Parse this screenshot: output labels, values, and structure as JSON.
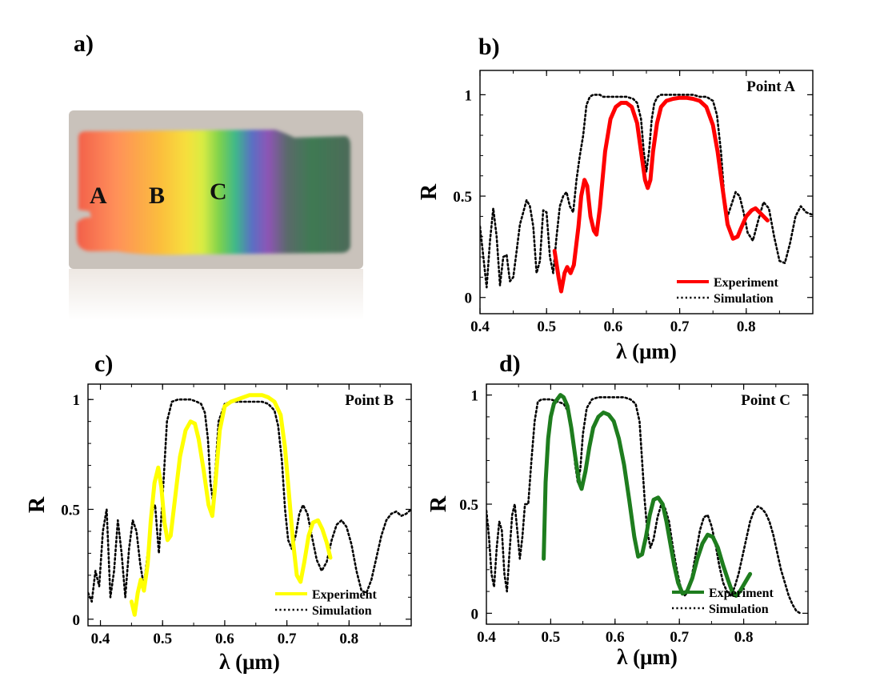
{
  "panel_labels": {
    "a": "a)",
    "b": "b)",
    "c": "c)",
    "d": "d)"
  },
  "photo": {
    "point_labels": [
      {
        "text": "A",
        "color": "#111111"
      },
      {
        "text": "B",
        "color": "#111111"
      },
      {
        "text": "C",
        "color": "#111111"
      }
    ],
    "gradient_colors": [
      "#f25f4a",
      "#ff8f5a",
      "#fbbc3e",
      "#f7df3c",
      "#d9ec43",
      "#7fd24c",
      "#3fb88a",
      "#5a6fc4",
      "#8e55b5",
      "#5a6a6a",
      "#3e7a52",
      "#4d6a5a"
    ]
  },
  "chart_data": [
    {
      "type": "line",
      "panel": "b",
      "annotation": "Point A",
      "xlabel": "λ (μm)",
      "ylabel": "R",
      "xlim": [
        0.4,
        0.9
      ],
      "ylim": [
        -0.08,
        1.12
      ],
      "xticks": [
        0.4,
        0.5,
        0.6,
        0.7,
        0.8
      ],
      "xtick_labels": [
        "0.4",
        "0.5",
        "0.6",
        "0.7",
        "0.8"
      ],
      "yticks": [
        0,
        0.5,
        1
      ],
      "ytick_labels": [
        "0",
        "0.5",
        "1"
      ],
      "legend_position": "bottom-right",
      "series": [
        {
          "name": "Experiment",
          "color": "#ff0000",
          "style": "solid",
          "x": [
            0.512,
            0.518,
            0.522,
            0.527,
            0.531,
            0.536,
            0.541,
            0.548,
            0.552,
            0.557,
            0.561,
            0.566,
            0.571,
            0.575,
            0.58,
            0.588,
            0.596,
            0.604,
            0.612,
            0.62,
            0.628,
            0.636,
            0.642,
            0.648,
            0.652,
            0.656,
            0.66,
            0.666,
            0.672,
            0.68,
            0.69,
            0.7,
            0.71,
            0.72,
            0.73,
            0.74,
            0.75,
            0.757,
            0.764,
            0.772,
            0.78,
            0.787,
            0.792,
            0.8,
            0.808,
            0.814,
            0.82,
            0.826,
            0.832
          ],
          "y": [
            0.23,
            0.1,
            0.03,
            0.12,
            0.15,
            0.12,
            0.16,
            0.35,
            0.5,
            0.58,
            0.55,
            0.4,
            0.33,
            0.31,
            0.44,
            0.72,
            0.88,
            0.94,
            0.96,
            0.96,
            0.94,
            0.86,
            0.72,
            0.58,
            0.54,
            0.58,
            0.72,
            0.86,
            0.94,
            0.97,
            0.98,
            0.985,
            0.985,
            0.98,
            0.97,
            0.94,
            0.85,
            0.72,
            0.55,
            0.36,
            0.29,
            0.3,
            0.34,
            0.4,
            0.43,
            0.44,
            0.42,
            0.4,
            0.38
          ]
        },
        {
          "name": "Simulation",
          "color": "#000000",
          "style": "dotted",
          "x": [
            0.4,
            0.405,
            0.41,
            0.415,
            0.42,
            0.425,
            0.43,
            0.435,
            0.44,
            0.445,
            0.45,
            0.455,
            0.46,
            0.465,
            0.47,
            0.475,
            0.48,
            0.485,
            0.49,
            0.495,
            0.5,
            0.505,
            0.51,
            0.515,
            0.52,
            0.525,
            0.53,
            0.535,
            0.54,
            0.545,
            0.55,
            0.555,
            0.56,
            0.565,
            0.57,
            0.575,
            0.58,
            0.585,
            0.59,
            0.6,
            0.61,
            0.62,
            0.63,
            0.636,
            0.642,
            0.646,
            0.65,
            0.654,
            0.658,
            0.662,
            0.667,
            0.672,
            0.68,
            0.69,
            0.7,
            0.71,
            0.72,
            0.73,
            0.74,
            0.75,
            0.756,
            0.762,
            0.767,
            0.772,
            0.778,
            0.784,
            0.79,
            0.796,
            0.802,
            0.81,
            0.818,
            0.826,
            0.834,
            0.842,
            0.85,
            0.858,
            0.866,
            0.874,
            0.882,
            0.89,
            0.898
          ],
          "y": [
            0.35,
            0.2,
            0.05,
            0.28,
            0.44,
            0.3,
            0.06,
            0.2,
            0.21,
            0.08,
            0.1,
            0.23,
            0.36,
            0.42,
            0.48,
            0.45,
            0.35,
            0.12,
            0.18,
            0.43,
            0.42,
            0.2,
            0.12,
            0.3,
            0.45,
            0.5,
            0.52,
            0.45,
            0.42,
            0.58,
            0.7,
            0.8,
            0.95,
            0.99,
            1.0,
            1.0,
            1.0,
            0.99,
            0.99,
            0.99,
            0.99,
            0.99,
            0.98,
            0.96,
            0.88,
            0.72,
            0.62,
            0.72,
            0.88,
            0.96,
            0.99,
            1.0,
            1.0,
            1.0,
            1.0,
            1.0,
            1.0,
            0.99,
            0.99,
            0.97,
            0.9,
            0.72,
            0.5,
            0.4,
            0.46,
            0.52,
            0.5,
            0.42,
            0.32,
            0.28,
            0.38,
            0.47,
            0.44,
            0.3,
            0.18,
            0.17,
            0.27,
            0.4,
            0.45,
            0.42,
            0.41
          ]
        }
      ]
    },
    {
      "type": "line",
      "panel": "c",
      "annotation": "Point B",
      "xlabel": "λ (μm)",
      "ylabel": "R",
      "xlim": [
        0.38,
        0.9
      ],
      "ylim": [
        -0.03,
        1.07
      ],
      "xticks": [
        0.4,
        0.5,
        0.6,
        0.7,
        0.8
      ],
      "xtick_labels": [
        "0.4",
        "0.5",
        "0.6",
        "0.7",
        "0.8"
      ],
      "yticks": [
        0,
        0.5,
        1
      ],
      "ytick_labels": [
        "0",
        "0.5",
        "1"
      ],
      "legend_position": "bottom-right",
      "series": [
        {
          "name": "Experiment",
          "color": "#ffff00",
          "style": "solid",
          "x": [
            0.45,
            0.455,
            0.46,
            0.465,
            0.47,
            0.476,
            0.481,
            0.487,
            0.493,
            0.498,
            0.503,
            0.508,
            0.513,
            0.52,
            0.528,
            0.537,
            0.545,
            0.552,
            0.558,
            0.566,
            0.574,
            0.58,
            0.585,
            0.592,
            0.6,
            0.61,
            0.62,
            0.63,
            0.64,
            0.65,
            0.66,
            0.67,
            0.68,
            0.69,
            0.697,
            0.704,
            0.71,
            0.716,
            0.722,
            0.728,
            0.735,
            0.742,
            0.75,
            0.757,
            0.764,
            0.77
          ],
          "y": [
            0.08,
            0.02,
            0.12,
            0.18,
            0.13,
            0.25,
            0.45,
            0.62,
            0.69,
            0.6,
            0.44,
            0.36,
            0.38,
            0.55,
            0.74,
            0.86,
            0.9,
            0.89,
            0.82,
            0.68,
            0.52,
            0.47,
            0.62,
            0.86,
            0.97,
            0.99,
            1.0,
            1.01,
            1.02,
            1.02,
            1.02,
            1.01,
            0.99,
            0.93,
            0.78,
            0.55,
            0.35,
            0.2,
            0.17,
            0.26,
            0.38,
            0.44,
            0.45,
            0.41,
            0.35,
            0.28
          ]
        },
        {
          "name": "Simulation",
          "color": "#000000",
          "style": "dotted",
          "x": [
            0.38,
            0.386,
            0.392,
            0.398,
            0.404,
            0.41,
            0.416,
            0.422,
            0.428,
            0.434,
            0.44,
            0.446,
            0.452,
            0.458,
            0.464,
            0.47,
            0.476,
            0.482,
            0.488,
            0.494,
            0.5,
            0.507,
            0.515,
            0.525,
            0.535,
            0.545,
            0.555,
            0.562,
            0.568,
            0.573,
            0.577,
            0.581,
            0.585,
            0.59,
            0.6,
            0.61,
            0.62,
            0.63,
            0.64,
            0.65,
            0.66,
            0.67,
            0.68,
            0.686,
            0.692,
            0.697,
            0.702,
            0.708,
            0.714,
            0.72,
            0.726,
            0.733,
            0.74,
            0.748,
            0.756,
            0.764,
            0.772,
            0.78,
            0.788,
            0.796,
            0.804,
            0.812,
            0.82,
            0.828,
            0.836,
            0.844,
            0.852,
            0.86,
            0.868,
            0.876,
            0.884,
            0.892,
            0.9
          ],
          "y": [
            0.12,
            0.08,
            0.22,
            0.15,
            0.4,
            0.5,
            0.1,
            0.22,
            0.45,
            0.3,
            0.1,
            0.32,
            0.45,
            0.4,
            0.25,
            0.15,
            0.3,
            0.48,
            0.52,
            0.3,
            0.55,
            0.9,
            0.99,
            1.0,
            1.0,
            1.0,
            0.99,
            0.98,
            0.94,
            0.82,
            0.62,
            0.54,
            0.68,
            0.9,
            0.98,
            0.99,
            0.99,
            0.99,
            0.99,
            0.99,
            0.99,
            0.98,
            0.95,
            0.88,
            0.72,
            0.5,
            0.36,
            0.32,
            0.38,
            0.48,
            0.52,
            0.48,
            0.38,
            0.27,
            0.22,
            0.26,
            0.36,
            0.43,
            0.45,
            0.42,
            0.34,
            0.22,
            0.13,
            0.12,
            0.18,
            0.28,
            0.38,
            0.45,
            0.48,
            0.49,
            0.47,
            0.48,
            0.5
          ]
        }
      ]
    },
    {
      "type": "line",
      "panel": "d",
      "annotation": "Point C",
      "xlabel": "λ (μm)",
      "ylabel": "R",
      "xlim": [
        0.4,
        0.9
      ],
      "ylim": [
        -0.05,
        1.05
      ],
      "xticks": [
        0.4,
        0.5,
        0.6,
        0.7,
        0.8
      ],
      "xtick_labels": [
        "0.4",
        "0.5",
        "0.6",
        "0.7",
        "0.8"
      ],
      "yticks": [
        0,
        0.5,
        1
      ],
      "ytick_labels": [
        "0",
        "0.5",
        "1"
      ],
      "legend_position": "bottom-right",
      "series": [
        {
          "name": "Experiment",
          "color": "#1e7d1e",
          "style": "solid",
          "x": [
            0.489,
            0.492,
            0.496,
            0.5,
            0.505,
            0.51,
            0.515,
            0.52,
            0.526,
            0.532,
            0.538,
            0.544,
            0.548,
            0.554,
            0.56,
            0.566,
            0.574,
            0.582,
            0.59,
            0.598,
            0.606,
            0.614,
            0.622,
            0.63,
            0.636,
            0.642,
            0.648,
            0.654,
            0.66,
            0.667,
            0.674,
            0.68,
            0.686,
            0.692,
            0.698,
            0.705,
            0.712,
            0.72,
            0.728,
            0.736,
            0.744,
            0.752,
            0.76,
            0.768,
            0.776,
            0.782,
            0.788,
            0.794,
            0.8,
            0.806,
            0.81
          ],
          "y": [
            0.25,
            0.6,
            0.8,
            0.9,
            0.96,
            0.98,
            1.0,
            0.99,
            0.95,
            0.85,
            0.72,
            0.6,
            0.57,
            0.65,
            0.76,
            0.85,
            0.9,
            0.92,
            0.91,
            0.88,
            0.8,
            0.68,
            0.52,
            0.35,
            0.26,
            0.27,
            0.35,
            0.45,
            0.52,
            0.53,
            0.5,
            0.42,
            0.32,
            0.22,
            0.14,
            0.09,
            0.1,
            0.16,
            0.25,
            0.32,
            0.36,
            0.35,
            0.3,
            0.22,
            0.15,
            0.1,
            0.08,
            0.1,
            0.13,
            0.16,
            0.18
          ]
        },
        {
          "name": "Simulation",
          "color": "#000000",
          "style": "dotted",
          "x": [
            0.4,
            0.404,
            0.408,
            0.412,
            0.416,
            0.42,
            0.424,
            0.428,
            0.432,
            0.436,
            0.44,
            0.444,
            0.448,
            0.452,
            0.456,
            0.46,
            0.465,
            0.47,
            0.475,
            0.48,
            0.486,
            0.492,
            0.5,
            0.51,
            0.52,
            0.528,
            0.534,
            0.538,
            0.542,
            0.546,
            0.55,
            0.556,
            0.564,
            0.574,
            0.584,
            0.594,
            0.604,
            0.614,
            0.624,
            0.632,
            0.638,
            0.642,
            0.646,
            0.65,
            0.655,
            0.66,
            0.666,
            0.672,
            0.678,
            0.684,
            0.69,
            0.696,
            0.702,
            0.708,
            0.714,
            0.72,
            0.726,
            0.732,
            0.738,
            0.744,
            0.75,
            0.756,
            0.762,
            0.768,
            0.774,
            0.78,
            0.786,
            0.792,
            0.798,
            0.804,
            0.81,
            0.816,
            0.822,
            0.828,
            0.834,
            0.84,
            0.846,
            0.852,
            0.858,
            0.864,
            0.87,
            0.876,
            0.882,
            0.888
          ],
          "y": [
            0.47,
            0.35,
            0.18,
            0.12,
            0.3,
            0.42,
            0.38,
            0.18,
            0.1,
            0.28,
            0.45,
            0.5,
            0.38,
            0.25,
            0.35,
            0.5,
            0.5,
            0.7,
            0.88,
            0.97,
            0.98,
            0.98,
            0.98,
            0.97,
            0.96,
            0.92,
            0.82,
            0.68,
            0.6,
            0.66,
            0.82,
            0.94,
            0.98,
            0.99,
            0.99,
            0.99,
            0.99,
            0.99,
            0.98,
            0.96,
            0.88,
            0.7,
            0.52,
            0.38,
            0.3,
            0.34,
            0.44,
            0.5,
            0.48,
            0.42,
            0.3,
            0.2,
            0.12,
            0.08,
            0.1,
            0.18,
            0.28,
            0.38,
            0.44,
            0.45,
            0.4,
            0.32,
            0.22,
            0.14,
            0.1,
            0.08,
            0.12,
            0.18,
            0.26,
            0.34,
            0.42,
            0.47,
            0.49,
            0.48,
            0.46,
            0.42,
            0.36,
            0.28,
            0.2,
            0.14,
            0.08,
            0.04,
            0.01,
            0.0
          ]
        }
      ]
    }
  ]
}
